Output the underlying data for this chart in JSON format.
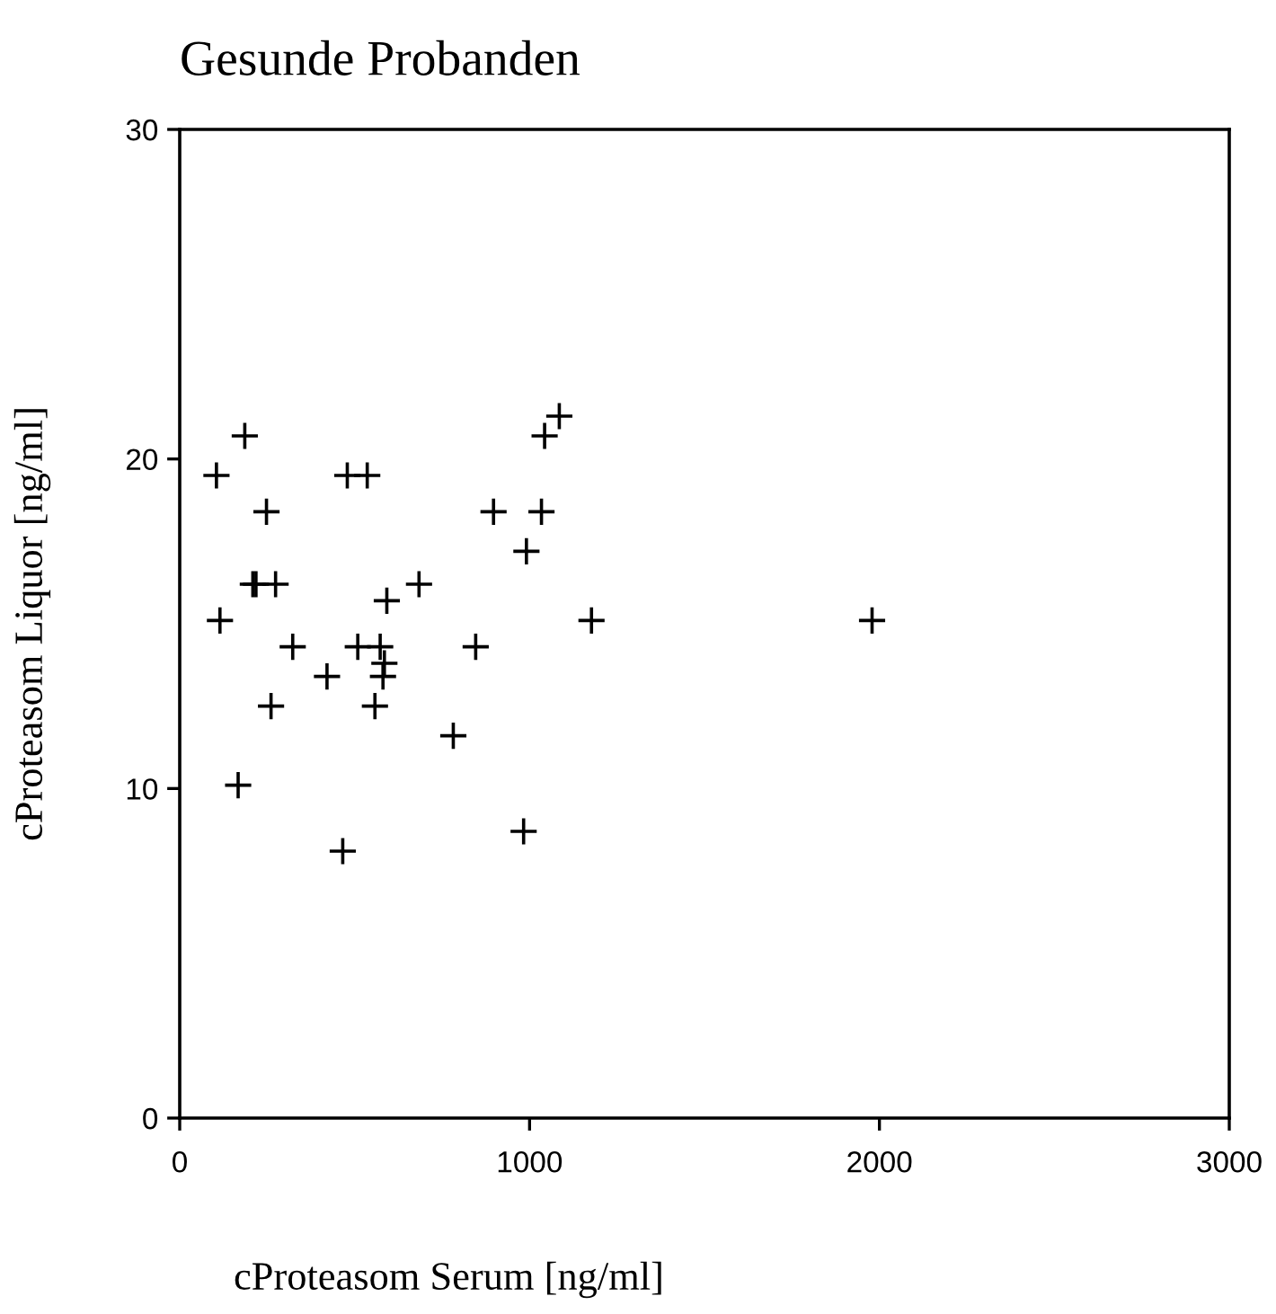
{
  "chart_data": {
    "type": "scatter",
    "title": "Gesunde Probanden",
    "xlabel": "cProteasom Serum [ng/ml]",
    "ylabel": "cProteasom Liquor [ng/ml]",
    "x": [
      186,
      105,
      479,
      536,
      248,
      897,
      1034,
      1043,
      1085,
      991,
      209,
      218,
      274,
      684,
      592,
      115,
      1177,
      1979,
      323,
      509,
      573,
      846,
      585,
      421,
      581,
      261,
      558,
      782,
      167,
      983,
      466
    ],
    "values": [
      20.7,
      19.5,
      19.5,
      19.5,
      18.4,
      18.4,
      18.4,
      20.7,
      21.3,
      17.2,
      16.2,
      16.2,
      16.2,
      16.2,
      15.7,
      15.1,
      15.1,
      15.1,
      14.3,
      14.3,
      14.3,
      14.3,
      13.8,
      13.4,
      13.4,
      12.5,
      12.5,
      11.6,
      10.1,
      8.7,
      8.1
    ],
    "color": "#000000",
    "marker": "cross",
    "xlim": [
      0,
      3000
    ],
    "xticks": [
      0,
      1000,
      2000,
      3000
    ],
    "ylim": [
      0,
      30
    ],
    "yticks": [
      0,
      10,
      20,
      30
    ],
    "grid": false,
    "legend": false
  }
}
